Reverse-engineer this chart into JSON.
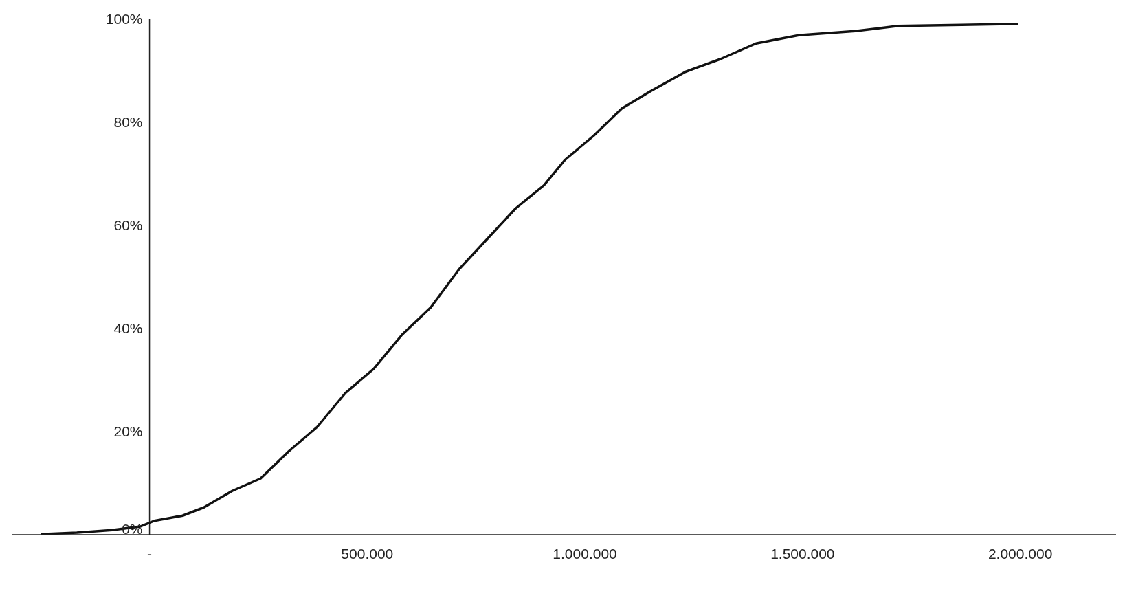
{
  "chart_data": {
    "type": "line",
    "x": [
      -249000,
      -167000,
      -86000,
      -21000,
      11000,
      76000,
      125000,
      190000,
      255000,
      320000,
      385000,
      450000,
      515000,
      580000,
      646000,
      711000,
      776000,
      841000,
      906000,
      954000,
      1020000,
      1085000,
      1150000,
      1231000,
      1312000,
      1393000,
      1491000,
      1621000,
      1719000,
      1865000,
      1995000
    ],
    "series": [
      {
        "color": "#111111",
        "values": [
          0.1,
          0.4,
          0.9,
          1.6,
          2.7,
          3.7,
          5.3,
          8.5,
          10.9,
          16.2,
          20.9,
          27.5,
          32.2,
          38.8,
          44.1,
          51.5,
          57.4,
          63.3,
          67.8,
          72.7,
          77.4,
          82.7,
          86.0,
          89.8,
          92.3,
          95.3,
          96.9,
          97.7,
          98.7,
          98.9,
          99.1
        ]
      }
    ],
    "xlim": [
      -315000,
      2220000
    ],
    "xticks": [
      {
        "value": 0,
        "label": "-"
      },
      {
        "value": 500000,
        "label": "500.000"
      },
      {
        "value": 1000000,
        "label": "1.000.000"
      },
      {
        "value": 1500000,
        "label": "1.500.000"
      },
      {
        "value": 2000000,
        "label": "2.000.000"
      }
    ],
    "ylim": [
      0,
      100
    ],
    "yticks": [
      {
        "value": 0,
        "label": "0%"
      },
      {
        "value": 20,
        "label": "20%"
      },
      {
        "value": 40,
        "label": "40%"
      },
      {
        "value": 60,
        "label": "60%"
      },
      {
        "value": 80,
        "label": "80%"
      },
      {
        "value": 100,
        "label": "100%"
      }
    ],
    "marker": "none",
    "line_style": "solid"
  }
}
